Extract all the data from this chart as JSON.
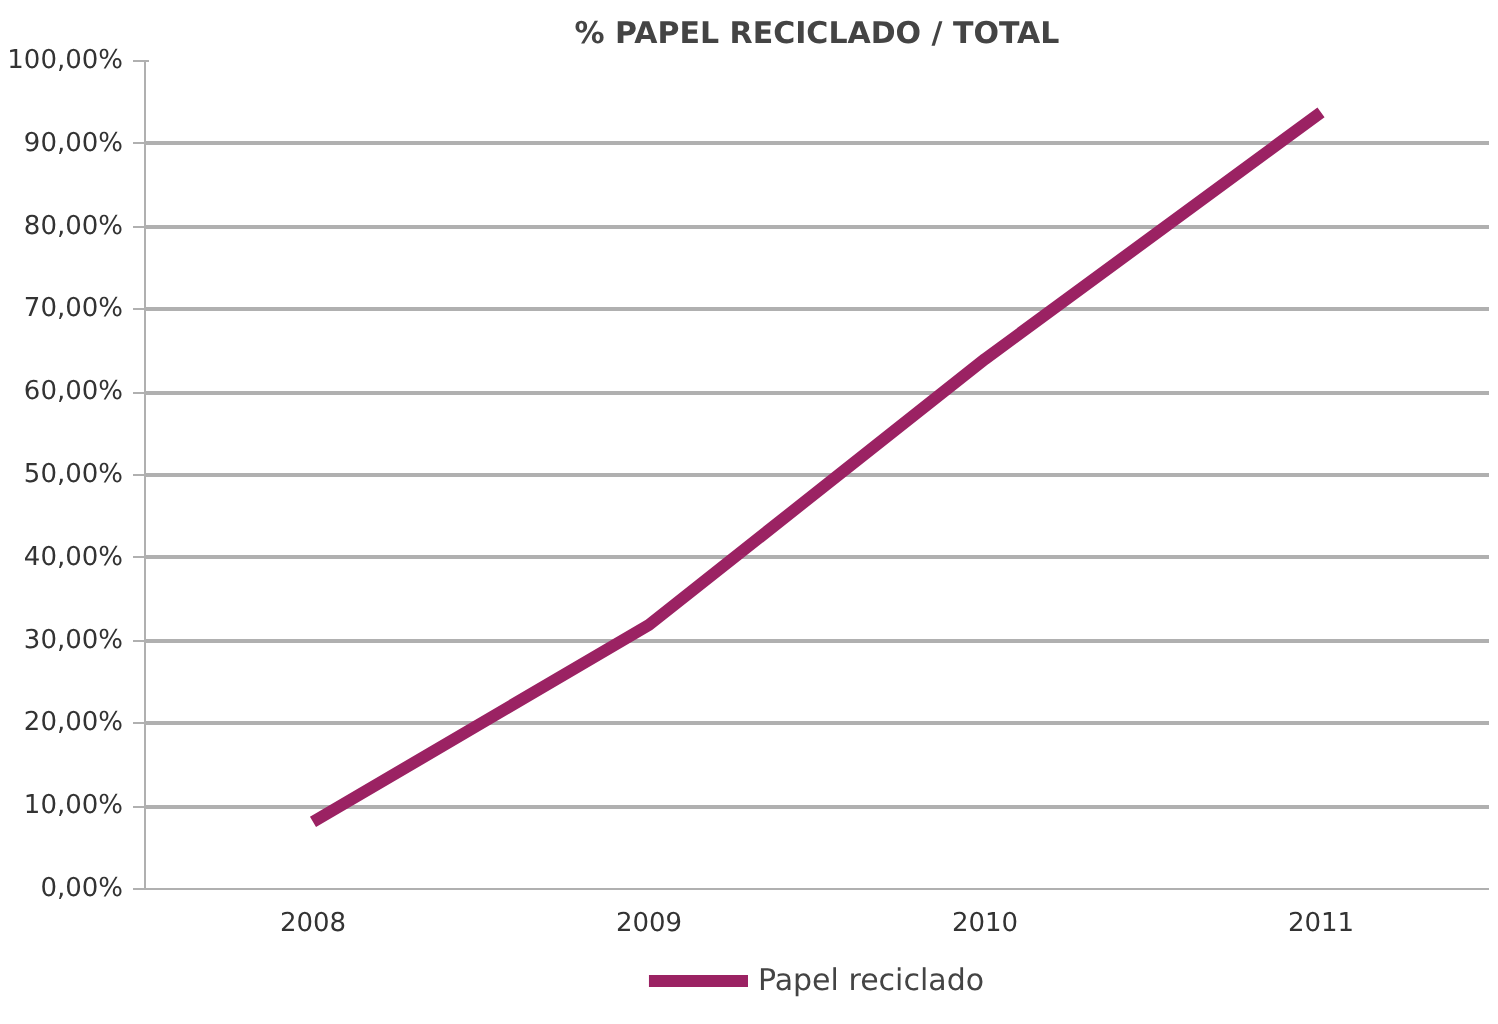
{
  "chart_data": {
    "type": "line",
    "title": "% PAPEL RECICLADO / TOTAL",
    "categories": [
      "2008",
      "2009",
      "2010",
      "2011"
    ],
    "series": [
      {
        "name": "Papel reciclado",
        "color": "#9b2263",
        "values": [
          8.1,
          31.9,
          64,
          93.8
        ]
      }
    ],
    "ylim": [
      0,
      100
    ],
    "yticks": [
      {
        "value": 0,
        "label": "0,00%"
      },
      {
        "value": 10,
        "label": "10,00%"
      },
      {
        "value": 20,
        "label": "20,00%"
      },
      {
        "value": 30,
        "label": "30,00%"
      },
      {
        "value": 40,
        "label": "40,00%"
      },
      {
        "value": 50,
        "label": "50,00%"
      },
      {
        "value": 60,
        "label": "60,00%"
      },
      {
        "value": 70,
        "label": "70,00%"
      },
      {
        "value": 80,
        "label": "80,00%"
      },
      {
        "value": 90,
        "label": "90,00%"
      },
      {
        "value": 100,
        "label": "100,00%"
      }
    ],
    "grid": "y",
    "legend": "bottom",
    "marker": "none",
    "line_style": "solid"
  }
}
